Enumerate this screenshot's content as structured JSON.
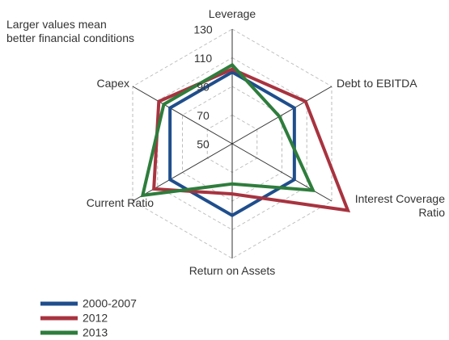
{
  "chart_data": {
    "type": "radar",
    "annotation": "Larger values mean better financial conditions",
    "categories": [
      "Leverage",
      "Debt to EBITDA",
      "Interest Coverage Ratio",
      "Return on Assets",
      "Current Ratio",
      "Capex"
    ],
    "ylim": [
      50,
      130
    ],
    "yticks": [
      50,
      70,
      90,
      110,
      130
    ],
    "grid": true,
    "series": [
      {
        "name": "2000-2007",
        "color": "#1f4e8c",
        "values": [
          100,
          100,
          100,
          100,
          100,
          100
        ]
      },
      {
        "name": "2012",
        "color": "#a8333f",
        "values": [
          102,
          109,
          143,
          85,
          113,
          109
        ]
      },
      {
        "name": "2013",
        "color": "#2e7d3c",
        "values": [
          105,
          88,
          115,
          78,
          122,
          105
        ]
      }
    ]
  }
}
